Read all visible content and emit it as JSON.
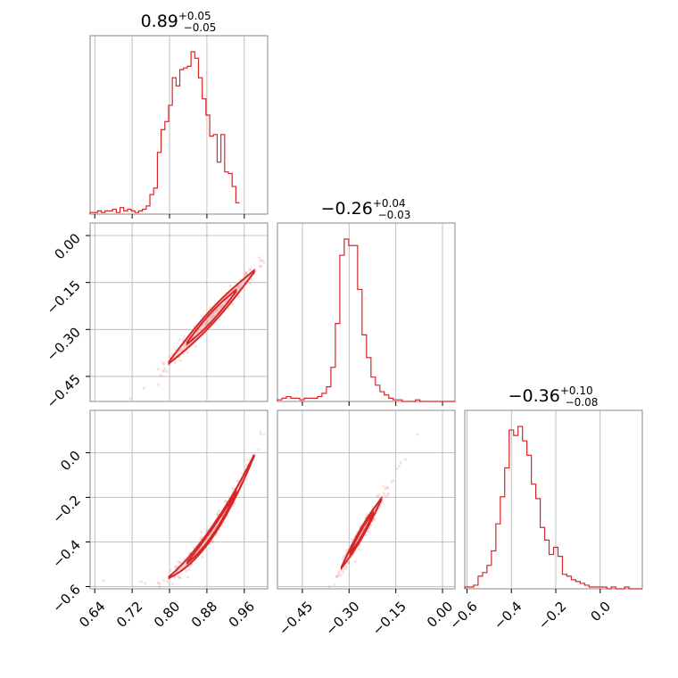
{
  "chart_data": {
    "type": "corner",
    "color": "#d62728",
    "parameters": [
      {
        "median": 0.89,
        "plus": 0.05,
        "minus": 0.05,
        "title_main": "0.89",
        "title_plus": "+0.05",
        "title_minus": "−0.05",
        "range": [
          0.63,
          1.01
        ],
        "ticks": [
          0.64,
          0.72,
          0.8,
          0.88,
          0.96
        ],
        "tick_labels": [
          "0.64",
          "0.72",
          "0.80",
          "0.88",
          "0.96"
        ]
      },
      {
        "median": -0.26,
        "plus": 0.04,
        "minus": 0.03,
        "title_main": "−0.26",
        "title_plus": "+0.04",
        "title_minus": "−0.03",
        "range": [
          -0.53,
          0.04
        ],
        "ticks": [
          -0.45,
          -0.3,
          -0.15,
          0.0
        ],
        "tick_labels": [
          "−0.45",
          "−0.30",
          "−0.15",
          "0.00"
        ],
        "row_ticks": [
          0.0,
          -0.15,
          -0.3,
          -0.45
        ],
        "row_tick_labels": [
          "0.00",
          "−0.15",
          "−0.30",
          "−0.45"
        ]
      },
      {
        "median": -0.36,
        "plus": 0.1,
        "minus": 0.08,
        "title_main": "−0.36",
        "title_plus": "+0.10",
        "title_minus": "−0.08",
        "range": [
          -0.61,
          0.19
        ],
        "ticks": [
          -0.6,
          -0.4,
          -0.2,
          0.0
        ],
        "tick_labels": [
          "−0.6",
          "−0.4",
          "−0.2",
          "0.0"
        ],
        "row_ticks": [
          0.0,
          -0.2,
          -0.4,
          -0.6
        ],
        "row_tick_labels": [
          "0.0",
          "−0.2",
          "−0.4",
          "−0.6"
        ]
      }
    ],
    "histograms": [
      {
        "param": 0,
        "bin_edges_start": 0.63,
        "bin_width": 0.008,
        "counts": [
          1,
          1,
          2,
          1,
          2,
          2,
          3,
          1,
          4,
          2,
          3,
          2,
          1,
          2,
          3,
          5,
          12,
          16,
          38,
          52,
          57,
          67,
          84,
          79,
          89,
          90,
          91,
          100,
          96,
          84,
          71,
          61,
          48,
          49,
          32,
          49,
          26,
          25,
          17,
          7
        ]
      },
      {
        "param": 1,
        "bin_edges_start": -0.53,
        "bin_width": 0.0143,
        "counts": [
          1,
          2,
          3,
          2,
          2,
          1,
          2,
          2,
          2,
          3,
          5,
          9,
          21,
          48,
          90,
          100,
          96,
          96,
          69,
          41,
          27,
          15,
          10,
          6,
          4,
          2,
          1,
          1,
          0,
          0,
          0,
          1,
          0,
          0,
          0,
          0,
          0,
          0,
          0,
          0
        ]
      },
      {
        "param": 2,
        "bin_edges_start": -0.61,
        "bin_width": 0.02,
        "counts": [
          1,
          1,
          2,
          7,
          9,
          13,
          21,
          36,
          51,
          67,
          88,
          85,
          90,
          82,
          74,
          58,
          50,
          34,
          27,
          19,
          23,
          18,
          8,
          7,
          5,
          4,
          3,
          2,
          1,
          1,
          1,
          1,
          0,
          1,
          0,
          0,
          1,
          0,
          0,
          0
        ]
      }
    ],
    "correlations": [
      {
        "x_param": 0,
        "y_param": 1,
        "relation": "y = -0.26 + 1.6*(x - 0.89)",
        "scatter_spread": 0.015
      },
      {
        "x_param": 0,
        "y_param": 2,
        "relation": "y = -0.36 + 3.0*(x - 0.89) + 9*(x - 0.89)^2",
        "scatter_spread": 0.02
      },
      {
        "x_param": 1,
        "y_param": 2,
        "relation": "y = -0.36 + 2.4*(x + 0.26)",
        "scatter_spread": 0.02
      }
    ],
    "grid": true
  }
}
